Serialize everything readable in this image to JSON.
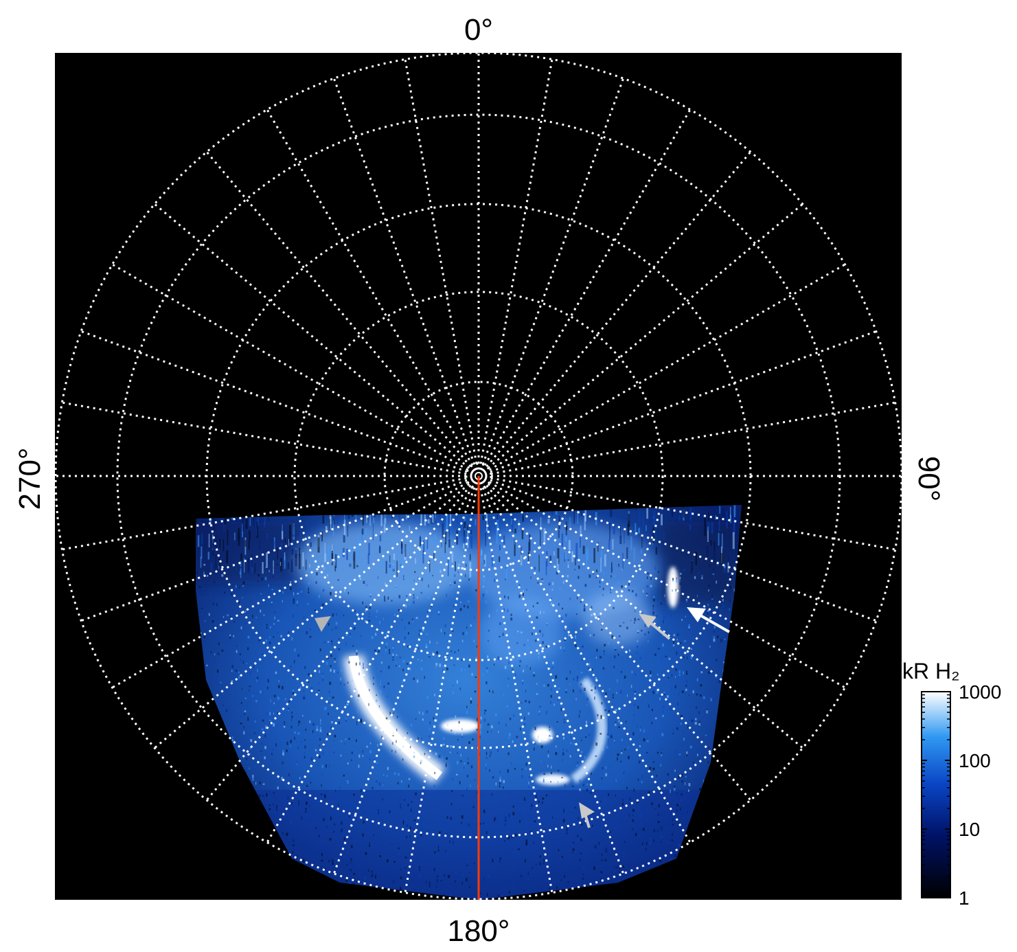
{
  "projection": {
    "lon_labels": {
      "top": "0°",
      "right": "90°",
      "bottom": "180°",
      "left": "270°"
    },
    "radial_circles": 9,
    "meridian_count": 36,
    "meridian_line_color": "#ff3a00"
  },
  "colorbar": {
    "title": "kR H₂",
    "scale": "log",
    "tick_labels": [
      "1000",
      "100",
      "10",
      "1"
    ],
    "range": [
      1,
      1000
    ]
  },
  "arrows": [
    {
      "color": "gray-arrow"
    },
    {
      "color": "gray-arrow"
    },
    {
      "color": "white-arrow"
    },
    {
      "color": "gray-arrow"
    }
  ],
  "colors": {
    "background": "#000000",
    "grid": "#ffffff",
    "aurora_bright": "#f2f8ff",
    "aurora_mid": "#2a8cf0",
    "aurora_dark": "#001a66"
  }
}
